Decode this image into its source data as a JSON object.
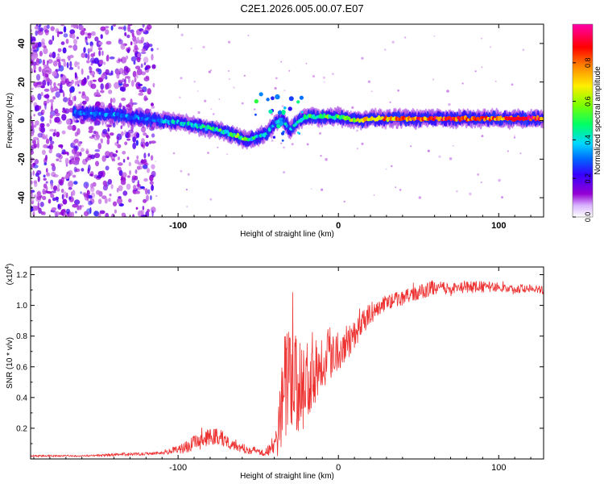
{
  "title": "C2E1.2026.005.00.07.E07",
  "chart_data": [
    {
      "type": "heatmap",
      "title": "C2E1.2026.005.00.07.E07",
      "xlabel": "Height of straight line (km)",
      "ylabel": "Frequency (Hz)",
      "xlim": [
        -192,
        128
      ],
      "ylim": [
        -50,
        50
      ],
      "xticks": [
        -100,
        0,
        100
      ],
      "xtick_labels": [
        "-100",
        "0",
        "100"
      ],
      "yticks": [
        -40,
        -20,
        0,
        20,
        40
      ],
      "ytick_labels": [
        "-40",
        "-20",
        "0",
        "20",
        "40"
      ],
      "colorbar": {
        "label": "Normalized spectral amplitude",
        "range": [
          0.0,
          1.0
        ],
        "ticks": [
          0.0,
          0.2,
          0.4,
          0.6,
          0.8
        ],
        "tick_labels": [
          "0.0",
          "0.2",
          "0.4",
          "0.6",
          "0.8"
        ],
        "colors": [
          "#ffffff",
          "#9400d3",
          "#3700ff",
          "#0066ff",
          "#00d7ff",
          "#00ff66",
          "#7cff00",
          "#ffee00",
          "#ff8800",
          "#ff0000",
          "#ff00aa"
        ]
      },
      "ridge": {
        "name": "dominant frequency",
        "x": [
          -160,
          -140,
          -120,
          -100,
          -80,
          -70,
          -60,
          -55,
          -50,
          -45,
          -40,
          -35,
          -30,
          -25,
          -20,
          -10,
          0,
          10,
          20,
          40,
          60,
          80,
          100,
          120,
          128
        ],
        "y": [
          4,
          3,
          1,
          -1,
          -4,
          -6,
          -9,
          -10,
          -8,
          -7,
          -2,
          1,
          -5,
          0,
          2,
          2,
          2,
          0,
          1,
          1,
          1,
          1,
          1,
          1,
          1
        ],
        "amplitude": [
          0.25,
          0.3,
          0.3,
          0.35,
          0.45,
          0.5,
          0.55,
          0.5,
          0.4,
          0.35,
          0.3,
          0.35,
          0.3,
          0.4,
          0.5,
          0.55,
          0.5,
          0.65,
          0.75,
          0.8,
          0.85,
          0.85,
          0.8,
          0.95,
          0.8
        ]
      },
      "scatter_region": {
        "x_range": [
          -192,
          -115
        ],
        "y_range": [
          -50,
          50
        ],
        "amplitude": "0.1-0.3"
      }
    },
    {
      "type": "line",
      "xlabel": "Height of straight line (km)",
      "ylabel": "SNR (10 * v/v)",
      "y_multiplier": "(x10",
      "y_multiplier_exp": "4",
      "y_multiplier_close": ")",
      "xlim": [
        -192,
        128
      ],
      "ylim": [
        0,
        1.25
      ],
      "xticks": [
        -100,
        0,
        100
      ],
      "xtick_labels": [
        "-100",
        "0",
        "100"
      ],
      "yticks": [
        0.2,
        0.4,
        0.6,
        0.8,
        1.0,
        1.2
      ],
      "ytick_labels": [
        "0.2",
        "0.4",
        "0.6",
        "0.8",
        "1.0",
        "1.2"
      ],
      "series": [
        {
          "name": "SNR",
          "color": "#ee3333",
          "x": [
            -192,
            -160,
            -130,
            -110,
            -100,
            -90,
            -80,
            -75,
            -70,
            -60,
            -50,
            -45,
            -40,
            -37,
            -35,
            -30,
            -25,
            -20,
            -15,
            -10,
            -5,
            0,
            5,
            10,
            15,
            20,
            25,
            30,
            40,
            50,
            60,
            70,
            80,
            90,
            100,
            110,
            120,
            128
          ],
          "y": [
            0.02,
            0.02,
            0.03,
            0.04,
            0.06,
            0.1,
            0.14,
            0.15,
            0.12,
            0.07,
            0.05,
            0.05,
            0.08,
            0.2,
            0.45,
            0.55,
            0.45,
            0.5,
            0.6,
            0.65,
            0.7,
            0.72,
            0.75,
            0.82,
            0.88,
            0.95,
            0.98,
            1.02,
            1.05,
            1.08,
            1.12,
            1.1,
            1.12,
            1.12,
            1.12,
            1.1,
            1.12,
            1.1
          ],
          "noise": [
            0.005,
            0.005,
            0.01,
            0.01,
            0.03,
            0.05,
            0.06,
            0.06,
            0.05,
            0.03,
            0.03,
            0.03,
            0.08,
            0.2,
            0.35,
            0.35,
            0.3,
            0.3,
            0.25,
            0.2,
            0.18,
            0.15,
            0.12,
            0.1,
            0.08,
            0.07,
            0.06,
            0.05,
            0.05,
            0.05,
            0.05,
            0.04,
            0.04,
            0.04,
            0.03,
            0.03,
            0.03,
            0.03
          ]
        }
      ]
    }
  ]
}
